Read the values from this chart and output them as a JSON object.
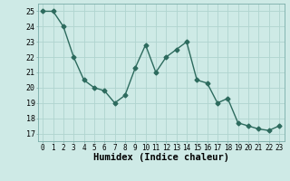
{
  "x": [
    0,
    1,
    2,
    3,
    4,
    5,
    6,
    7,
    8,
    9,
    10,
    11,
    12,
    13,
    14,
    15,
    16,
    17,
    18,
    19,
    20,
    21,
    22,
    23
  ],
  "y": [
    25.0,
    25.0,
    24.0,
    22.0,
    20.5,
    20.0,
    19.8,
    19.0,
    19.5,
    21.3,
    22.8,
    21.0,
    22.0,
    22.5,
    23.0,
    20.5,
    20.3,
    19.0,
    19.3,
    17.7,
    17.5,
    17.3,
    17.2,
    17.5
  ],
  "line_color": "#2d6b5e",
  "marker": "D",
  "marker_size": 2.5,
  "bg_color": "#ceeae6",
  "grid_color": "#b0d4cf",
  "xlabel": "Humidex (Indice chaleur)",
  "ylim": [
    16.5,
    25.5
  ],
  "xlim": [
    -0.5,
    23.5
  ],
  "yticks": [
    17,
    18,
    19,
    20,
    21,
    22,
    23,
    24,
    25
  ],
  "xticks": [
    0,
    1,
    2,
    3,
    4,
    5,
    6,
    7,
    8,
    9,
    10,
    11,
    12,
    13,
    14,
    15,
    16,
    17,
    18,
    19,
    20,
    21,
    22,
    23
  ],
  "tick_label_fontsize": 5.5,
  "xlabel_fontsize": 7.5,
  "ytick_label_fontsize": 6.0
}
